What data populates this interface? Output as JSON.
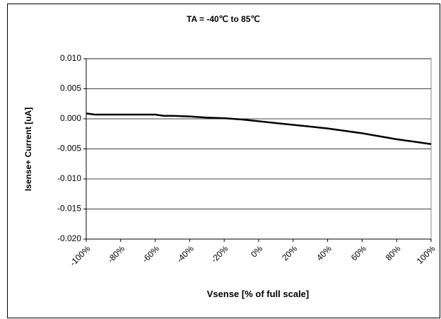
{
  "chart_data": {
    "type": "line",
    "title": "TA = -40℃ to 85℃",
    "x_label": "Vsense [% of full scale]",
    "y_label": "Isense+ Current [uA]",
    "x": [
      -100,
      -95,
      -90,
      -80,
      -70,
      -60,
      -55,
      -50,
      -40,
      -30,
      -20,
      -10,
      0,
      10,
      20,
      30,
      40,
      50,
      60,
      70,
      80,
      90,
      100
    ],
    "series": [
      {
        "name": "Isense+",
        "color": "#000000",
        "values": [
          0.0009,
          0.0007,
          0.0007,
          0.0007,
          0.0007,
          0.0007,
          0.0005,
          0.0005,
          0.0004,
          0.0002,
          0.0001,
          -0.0001,
          -0.0004,
          -0.0007,
          -0.001,
          -0.0013,
          -0.0016,
          -0.002,
          -0.0024,
          -0.0029,
          -0.0034,
          -0.0038,
          -0.0042
        ]
      }
    ],
    "xlim": [
      -100,
      100
    ],
    "xticks": [
      {
        "value": -100,
        "label": "-100%"
      },
      {
        "value": -80,
        "label": "-80%"
      },
      {
        "value": -60,
        "label": "-60%"
      },
      {
        "value": -40,
        "label": "-40%"
      },
      {
        "value": -20,
        "label": "-20%"
      },
      {
        "value": 0,
        "label": "0%"
      },
      {
        "value": 20,
        "label": "20%"
      },
      {
        "value": 40,
        "label": "40%"
      },
      {
        "value": 60,
        "label": "60%"
      },
      {
        "value": 80,
        "label": "80%"
      },
      {
        "value": 100,
        "label": "100%"
      }
    ],
    "ylim": [
      -0.02,
      0.01
    ],
    "yticks": [
      {
        "value": -0.02,
        "label": "-0.020"
      },
      {
        "value": -0.015,
        "label": "-0.015"
      },
      {
        "value": -0.01,
        "label": "-0.010"
      },
      {
        "value": -0.005,
        "label": "-0.005"
      },
      {
        "value": 0,
        "label": "0.000"
      },
      {
        "value": 0.005,
        "label": "0.005"
      },
      {
        "value": 0.01,
        "label": "0.010"
      }
    ],
    "grid": true
  }
}
